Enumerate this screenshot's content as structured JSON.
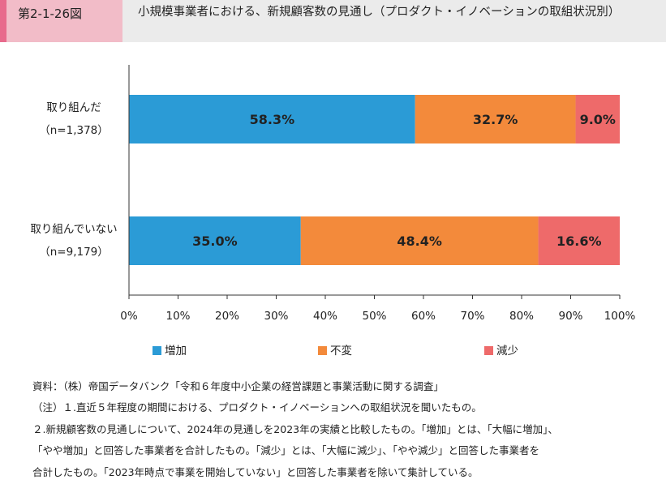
{
  "header": {
    "figure_number": "第2-1-26図",
    "title": "小規模事業者における、新規顧客数の見通し（プロダクト・イノベーションの取組状況別）"
  },
  "colors": {
    "increase": "#2b9bd6",
    "flat": "#f38a3b",
    "decrease": "#ee6a6a",
    "header_bg": "#ebebeb",
    "tag_bg": "#f2bcc8",
    "tag_accent": "#e86a8c"
  },
  "chart_data": {
    "type": "bar",
    "orientation": "horizontal",
    "stacked": true,
    "categories": [
      {
        "label": "取り組んだ",
        "n": "（n=1,378）"
      },
      {
        "label": "取り組んでいない",
        "n": "（n=9,179）"
      }
    ],
    "series": [
      {
        "name": "増加",
        "values": [
          58.3,
          35.0
        ],
        "labels": [
          "58.3%",
          "35.0%"
        ]
      },
      {
        "name": "不変",
        "values": [
          32.7,
          48.4
        ],
        "labels": [
          "32.7%",
          "48.4%"
        ]
      },
      {
        "name": "減少",
        "values": [
          9.0,
          16.6
        ],
        "labels": [
          "9.0%",
          "16.6%"
        ]
      }
    ],
    "xlim": [
      0,
      100
    ],
    "xticks": [
      "0%",
      "10%",
      "20%",
      "30%",
      "40%",
      "50%",
      "60%",
      "70%",
      "80%",
      "90%",
      "100%"
    ],
    "grid": false,
    "legend_position": "bottom"
  },
  "notes": [
    "資料：（株）帝国データバンク「令和６年度中小企業の経営課題と事業活動に関する調査」",
    "（注）１.直近５年程度の期間における、プロダクト・イノベーションへの取組状況を聞いたもの。",
    "２.新規顧客数の見通しについて、2024年の見通しを2023年の実績と比較したもの。「増加」とは、「大幅に増加」、",
    "「やや増加」と回答した事業者を合計したもの。「減少」とは、「大幅に減少」、「やや減少」と回答した事業者を",
    "合計したもの。「2023年時点で事業を開始していない」と回答した事業者を除いて集計している。"
  ]
}
